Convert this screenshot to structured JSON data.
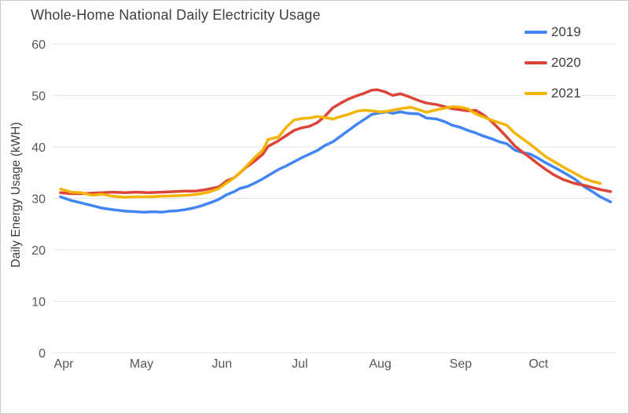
{
  "title": "Whole-Home National Daily Electricity Usage",
  "chart_data": {
    "type": "line",
    "title": "Whole-Home National Daily Electricity Usage",
    "xlabel": "",
    "ylabel": "Daily Energy Usage (kWH)",
    "ylim": [
      0,
      60
    ],
    "y_ticks": [
      0,
      10,
      20,
      30,
      40,
      50,
      60
    ],
    "grid": "horizontal",
    "legend_position": "top-right",
    "x_unit": "days since Apr 1",
    "x_ticks": [
      {
        "label": "Apr",
        "day": 0
      },
      {
        "label": "May",
        "day": 30
      },
      {
        "label": "Jun",
        "day": 61
      },
      {
        "label": "Jul",
        "day": 91
      },
      {
        "label": "Aug",
        "day": 122
      },
      {
        "label": "Sep",
        "day": 153
      },
      {
        "label": "Oct",
        "day": 183
      }
    ],
    "series": [
      {
        "name": "2019",
        "color": "#4285F4",
        "points": [
          [
            0,
            30.3
          ],
          [
            4,
            29.6
          ],
          [
            8,
            29.1
          ],
          [
            12,
            28.6
          ],
          [
            16,
            28.1
          ],
          [
            20,
            27.8
          ],
          [
            25,
            27.5
          ],
          [
            29,
            27.4
          ],
          [
            32,
            27.3
          ],
          [
            36,
            27.4
          ],
          [
            39,
            27.3
          ],
          [
            42,
            27.5
          ],
          [
            45,
            27.6
          ],
          [
            48,
            27.8
          ],
          [
            51,
            28.1
          ],
          [
            54,
            28.5
          ],
          [
            58,
            29.2
          ],
          [
            61,
            29.8
          ],
          [
            64,
            30.7
          ],
          [
            67,
            31.3
          ],
          [
            69,
            31.9
          ],
          [
            72,
            32.3
          ],
          [
            75,
            33.0
          ],
          [
            78,
            33.8
          ],
          [
            81,
            34.7
          ],
          [
            84,
            35.6
          ],
          [
            87,
            36.3
          ],
          [
            90,
            37.1
          ],
          [
            93,
            37.9
          ],
          [
            96,
            38.6
          ],
          [
            99,
            39.3
          ],
          [
            102,
            40.3
          ],
          [
            105,
            41.0
          ],
          [
            108,
            42.1
          ],
          [
            111,
            43.2
          ],
          [
            114,
            44.3
          ],
          [
            117,
            45.3
          ],
          [
            120,
            46.3
          ],
          [
            123,
            46.6
          ],
          [
            126,
            46.8
          ],
          [
            128,
            46.5
          ],
          [
            131,
            46.8
          ],
          [
            134,
            46.5
          ],
          [
            138,
            46.4
          ],
          [
            141,
            45.6
          ],
          [
            145,
            45.4
          ],
          [
            148,
            44.9
          ],
          [
            151,
            44.2
          ],
          [
            154,
            43.8
          ],
          [
            157,
            43.2
          ],
          [
            160,
            42.7
          ],
          [
            163,
            42.1
          ],
          [
            166,
            41.6
          ],
          [
            169,
            41.0
          ],
          [
            172,
            40.6
          ],
          [
            175,
            39.4
          ],
          [
            178,
            38.9
          ],
          [
            181,
            38.6
          ],
          [
            184,
            37.8
          ],
          [
            187,
            36.9
          ],
          [
            190,
            36.1
          ],
          [
            194,
            35.0
          ],
          [
            198,
            33.8
          ],
          [
            202,
            32.2
          ],
          [
            205,
            31.3
          ],
          [
            208,
            30.3
          ],
          [
            212,
            29.3
          ]
        ]
      },
      {
        "name": "2020",
        "color": "#DB4437",
        "points": [
          [
            0,
            31.1
          ],
          [
            4,
            30.9
          ],
          [
            8,
            30.9
          ],
          [
            12,
            31.0
          ],
          [
            16,
            31.1
          ],
          [
            20,
            31.2
          ],
          [
            25,
            31.1
          ],
          [
            29,
            31.2
          ],
          [
            34,
            31.1
          ],
          [
            39,
            31.2
          ],
          [
            44,
            31.3
          ],
          [
            48,
            31.4
          ],
          [
            52,
            31.4
          ],
          [
            56,
            31.7
          ],
          [
            61,
            32.2
          ],
          [
            64,
            33.4
          ],
          [
            67,
            34.0
          ],
          [
            71,
            35.8
          ],
          [
            75,
            37.3
          ],
          [
            78,
            38.6
          ],
          [
            80,
            40.1
          ],
          [
            84,
            41.2
          ],
          [
            87,
            42.2
          ],
          [
            90,
            43.2
          ],
          [
            93,
            43.7
          ],
          [
            96,
            44.0
          ],
          [
            99,
            44.7
          ],
          [
            102,
            46.0
          ],
          [
            105,
            47.6
          ],
          [
            108,
            48.5
          ],
          [
            111,
            49.3
          ],
          [
            114,
            49.9
          ],
          [
            117,
            50.4
          ],
          [
            120,
            51.0
          ],
          [
            122,
            51.1
          ],
          [
            125,
            50.7
          ],
          [
            128,
            50.0
          ],
          [
            131,
            50.3
          ],
          [
            134,
            49.8
          ],
          [
            138,
            49.0
          ],
          [
            141,
            48.5
          ],
          [
            145,
            48.2
          ],
          [
            148,
            47.8
          ],
          [
            151,
            47.4
          ],
          [
            154,
            47.2
          ],
          [
            157,
            47.0
          ],
          [
            160,
            47.1
          ],
          [
            163,
            46.2
          ],
          [
            166,
            45.0
          ],
          [
            169,
            43.5
          ],
          [
            172,
            41.9
          ],
          [
            175,
            40.2
          ],
          [
            178,
            39.0
          ],
          [
            181,
            37.9
          ],
          [
            184,
            36.7
          ],
          [
            187,
            35.6
          ],
          [
            190,
            34.6
          ],
          [
            194,
            33.6
          ],
          [
            198,
            32.9
          ],
          [
            202,
            32.5
          ],
          [
            205,
            32.1
          ],
          [
            208,
            31.7
          ],
          [
            212,
            31.3
          ]
        ]
      },
      {
        "name": "2021",
        "color": "#F4B400",
        "points": [
          [
            0,
            31.8
          ],
          [
            4,
            31.2
          ],
          [
            8,
            31.1
          ],
          [
            12,
            30.6
          ],
          [
            16,
            30.8
          ],
          [
            20,
            30.4
          ],
          [
            25,
            30.2
          ],
          [
            29,
            30.3
          ],
          [
            34,
            30.3
          ],
          [
            39,
            30.4
          ],
          [
            44,
            30.5
          ],
          [
            49,
            30.6
          ],
          [
            53,
            30.8
          ],
          [
            57,
            31.2
          ],
          [
            61,
            31.9
          ],
          [
            64,
            33.0
          ],
          [
            67,
            34.0
          ],
          [
            71,
            35.9
          ],
          [
            75,
            38.0
          ],
          [
            78,
            39.4
          ],
          [
            80,
            41.4
          ],
          [
            82,
            41.7
          ],
          [
            84,
            41.9
          ],
          [
            87,
            43.8
          ],
          [
            90,
            45.2
          ],
          [
            93,
            45.5
          ],
          [
            96,
            45.6
          ],
          [
            99,
            45.9
          ],
          [
            102,
            45.7
          ],
          [
            105,
            45.4
          ],
          [
            108,
            45.9
          ],
          [
            111,
            46.3
          ],
          [
            114,
            46.9
          ],
          [
            117,
            47.1
          ],
          [
            120,
            47.0
          ],
          [
            123,
            46.8
          ],
          [
            126,
            46.9
          ],
          [
            129,
            47.2
          ],
          [
            132,
            47.5
          ],
          [
            135,
            47.7
          ],
          [
            138,
            47.2
          ],
          [
            141,
            46.7
          ],
          [
            145,
            47.2
          ],
          [
            148,
            47.5
          ],
          [
            151,
            47.8
          ],
          [
            154,
            47.7
          ],
          [
            157,
            47.4
          ],
          [
            160,
            46.4
          ],
          [
            163,
            45.8
          ],
          [
            166,
            45.2
          ],
          [
            169,
            44.7
          ],
          [
            172,
            44.2
          ],
          [
            175,
            42.7
          ],
          [
            178,
            41.6
          ],
          [
            181,
            40.5
          ],
          [
            184,
            39.3
          ],
          [
            187,
            38.1
          ],
          [
            190,
            37.2
          ],
          [
            194,
            36.0
          ],
          [
            198,
            34.9
          ],
          [
            202,
            33.8
          ],
          [
            205,
            33.3
          ],
          [
            208,
            32.9
          ]
        ]
      }
    ]
  }
}
